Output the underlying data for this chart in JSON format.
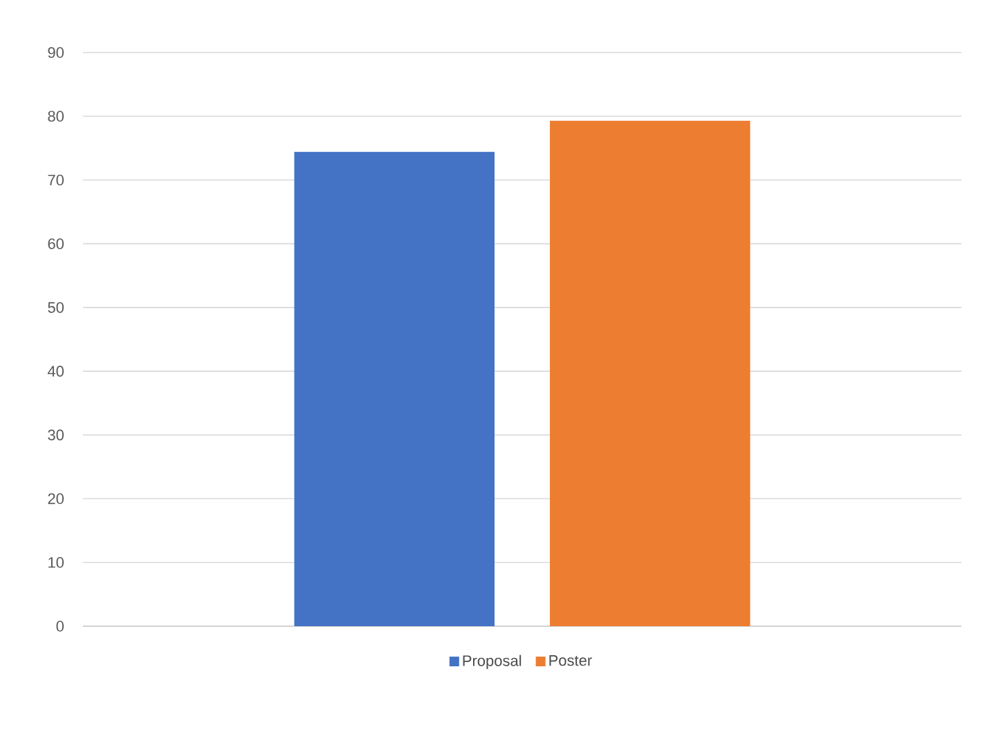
{
  "chart_data": {
    "type": "bar",
    "categories": [
      null
    ],
    "series": [
      {
        "name": "Proposal",
        "color": "#4472c4",
        "values": [
          74.4
        ]
      },
      {
        "name": "Poster",
        "color": "#ed7d31",
        "values": [
          79.3
        ]
      }
    ],
    "ylim": [
      0,
      90
    ],
    "yticks": [
      0,
      10,
      20,
      30,
      40,
      50,
      60,
      70,
      80,
      90
    ],
    "grid": "y",
    "legend": "bottom"
  }
}
